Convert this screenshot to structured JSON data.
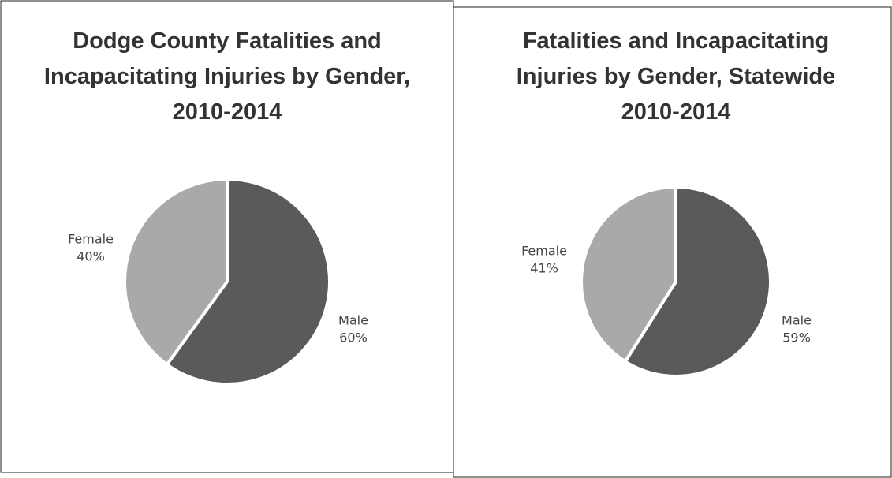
{
  "chart_data": [
    {
      "type": "pie",
      "title": "Dodge County Fatalities and Incapacitating Injuries by Gender, 2010-2014",
      "categories": [
        "Male",
        "Female"
      ],
      "values": [
        60,
        40
      ],
      "value_labels": [
        "60%",
        "40%"
      ],
      "colors": [
        "#5a5a5a",
        "#a9a9a9"
      ]
    },
    {
      "type": "pie",
      "title": "Fatalities and Incapacitating Injuries by Gender, Statewide 2010-2014",
      "categories": [
        "Male",
        "Female"
      ],
      "values": [
        59,
        41
      ],
      "value_labels": [
        "59%",
        "41%"
      ],
      "colors": [
        "#5a5a5a",
        "#a9a9a9"
      ]
    }
  ]
}
